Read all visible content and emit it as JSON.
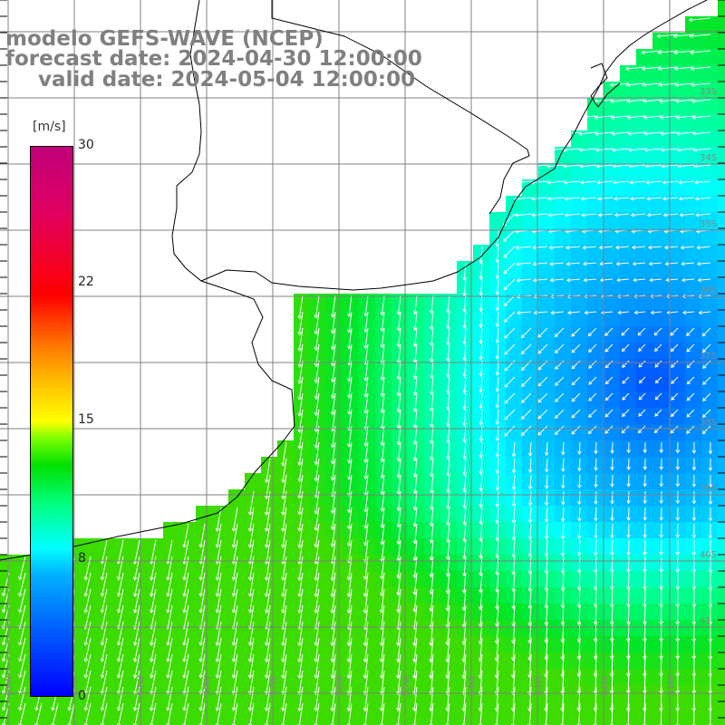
{
  "title": {
    "line1": "modelo GEFS-WAVE (NCEP)",
    "line2": "forecast date: 2024-04-30 12:00:00",
    "line3": "valid date: 2024-05-04 12:00:00"
  },
  "colorbar": {
    "unit": "[m/s]",
    "ticks": [
      "30",
      "22",
      "15",
      "8",
      "0"
    ],
    "tick_values": [
      30,
      22,
      15,
      8,
      0
    ],
    "range": [
      0,
      30
    ],
    "colors": [
      "#0000ff",
      "#00b0ff",
      "#00ffff",
      "#00e000",
      "#ffff00",
      "#ff8000",
      "#ff0000",
      "#c0007a"
    ]
  },
  "map": {
    "lat_labels": [
      "33S",
      "34S",
      "35S",
      "36S",
      "37S",
      "38S",
      "39S",
      "40S",
      "41"
    ],
    "lon_labels": [
      "61W",
      "60W",
      "59W",
      "58W",
      "57W",
      "56W",
      "55W",
      "54W",
      "53W",
      "52W",
      "51W"
    ],
    "grid_color": "#808080",
    "land_color": "#ffffff",
    "coast_color": "#000000",
    "arrow_color": "#ffffff"
  }
}
